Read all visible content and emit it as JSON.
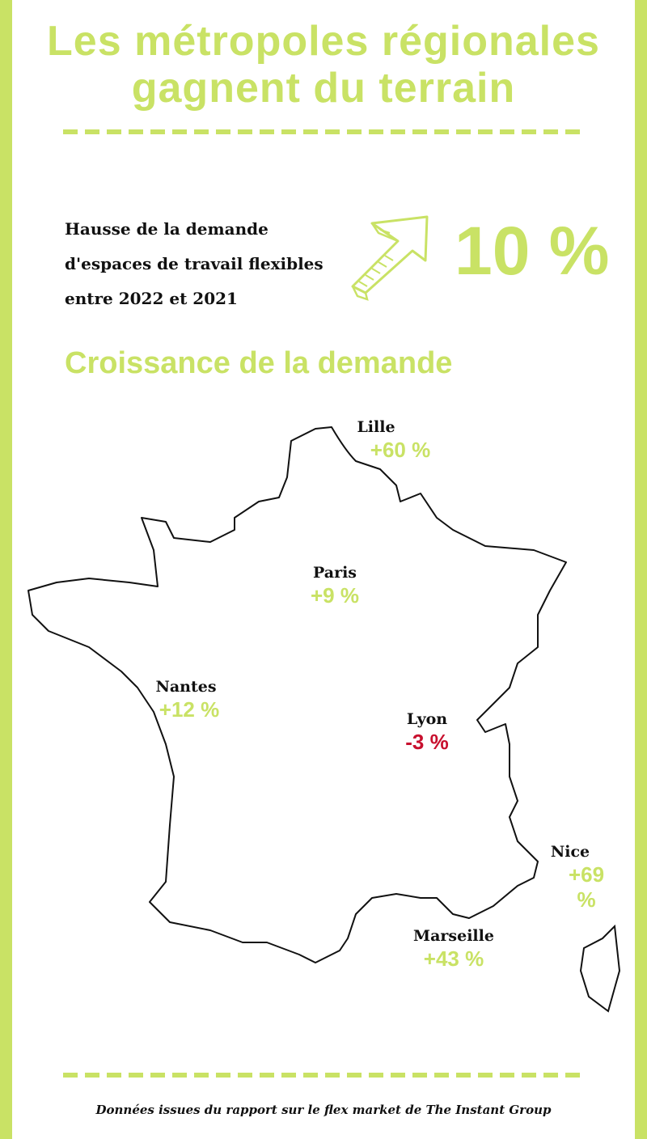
{
  "title": {
    "line1": "Les métropoles régionales",
    "line2": "gagnent du terrain"
  },
  "intro": {
    "text": "Hausse de la demande d'espaces de travail flexibles entre 2022 et 2021",
    "value": "10 %",
    "icon": "hand-drawn-arrow-up-right-icon"
  },
  "section_title": "Croissance de la demande",
  "cities": [
    {
      "name": "Lille",
      "value": "+60 %",
      "trend": "positive"
    },
    {
      "name": "Paris",
      "value": "+9 %",
      "trend": "positive"
    },
    {
      "name": "Nantes",
      "value": "+12 %",
      "trend": "positive"
    },
    {
      "name": "Lyon",
      "value": "-3 %",
      "trend": "negative"
    },
    {
      "name": "Nice",
      "value": "+69 %",
      "trend": "positive"
    },
    {
      "name": "Marseille",
      "value": "+43 %",
      "trend": "positive"
    }
  ],
  "source": "Données issues du rapport sur le flex market de The Instant Group",
  "colors": {
    "accent": "#c9e265",
    "negative": "#c8102e",
    "text": "#111111"
  }
}
